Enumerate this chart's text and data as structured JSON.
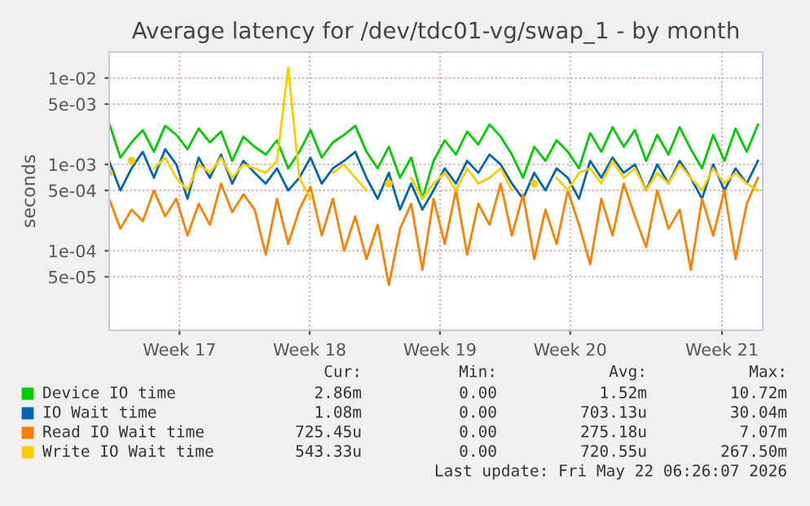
{
  "chart_data": {
    "type": "line",
    "title": "Average latency for /dev/tdc01-vg/swap_1 - by month",
    "ylabel": "seconds",
    "x": [
      "2026-04-19T18:00",
      "2026-04-20T08:00",
      "2026-04-20T22:00",
      "2026-04-21T12:00",
      "2026-04-22T02:00",
      "2026-04-22T16:00",
      "2026-04-23T06:00",
      "2026-04-23T20:00",
      "2026-04-24T10:00",
      "2026-04-25T00:00",
      "2026-04-25T14:00",
      "2026-04-26T04:00",
      "2026-04-26T18:00",
      "2026-04-27T08:00",
      "2026-04-27T22:00",
      "2026-04-28T12:00",
      "2026-04-29T02:00",
      "2026-04-29T16:00",
      "2026-04-30T06:00",
      "2026-04-30T20:00",
      "2026-05-01T10:00",
      "2026-05-02T00:00",
      "2026-05-02T14:00",
      "2026-05-03T04:00",
      "2026-05-03T18:00",
      "2026-05-04T08:00",
      "2026-05-04T22:00",
      "2026-05-05T12:00",
      "2026-05-06T02:00",
      "2026-05-06T16:00",
      "2026-05-07T06:00",
      "2026-05-07T20:00",
      "2026-05-08T10:00",
      "2026-05-09T00:00",
      "2026-05-09T14:00",
      "2026-05-10T04:00",
      "2026-05-10T18:00",
      "2026-05-11T08:00",
      "2026-05-11T22:00",
      "2026-05-12T12:00",
      "2026-05-13T02:00",
      "2026-05-13T16:00",
      "2026-05-14T06:00",
      "2026-05-14T20:00",
      "2026-05-15T10:00",
      "2026-05-16T00:00",
      "2026-05-16T14:00",
      "2026-05-17T04:00",
      "2026-05-17T18:00",
      "2026-05-18T08:00",
      "2026-05-18T22:00",
      "2026-05-19T12:00",
      "2026-05-20T02:00",
      "2026-05-20T16:00",
      "2026-05-21T06:00",
      "2026-05-21T20:00",
      "2026-05-22T10:00",
      "2026-05-23T00:00",
      "2026-05-23T14:00"
    ],
    "series": [
      {
        "name": "Device IO time",
        "color": "#00cc00",
        "values": [
          0.003,
          0.0012,
          0.0018,
          0.0025,
          0.0014,
          0.0028,
          0.0022,
          0.0015,
          0.0026,
          0.0018,
          0.0024,
          0.0011,
          0.0021,
          0.0016,
          0.0013,
          0.0019,
          0.0009,
          0.0014,
          0.0025,
          0.0012,
          0.0018,
          0.0022,
          0.0028,
          0.0014,
          0.0009,
          0.0016,
          0.0007,
          0.0012,
          0.0004,
          0.0011,
          0.0019,
          0.0013,
          0.0024,
          0.0017,
          0.0029,
          0.0021,
          0.0013,
          0.0007,
          0.0016,
          0.0011,
          0.0019,
          0.0014,
          0.0009,
          0.0023,
          0.0014,
          0.0027,
          0.0016,
          0.0025,
          0.0011,
          0.0022,
          0.0013,
          0.0027,
          0.0015,
          0.0009,
          0.0022,
          0.0011,
          0.0026,
          0.0014,
          0.0029
        ]
      },
      {
        "name": "IO Wait time",
        "color": "#0066b3",
        "values": [
          0.0011,
          0.0005,
          0.0009,
          0.0014,
          0.0007,
          0.0015,
          0.001,
          0.0004,
          0.0012,
          0.0007,
          0.0013,
          0.0006,
          0.0011,
          0.0008,
          0.0006,
          0.0009,
          0.0005,
          0.0007,
          0.0012,
          0.0006,
          0.0009,
          0.0011,
          0.0014,
          0.0007,
          0.0004,
          0.0008,
          0.0003,
          0.0006,
          0.0003,
          0.0005,
          0.0009,
          0.0006,
          0.0011,
          0.0008,
          0.0013,
          0.001,
          0.0006,
          0.0004,
          0.0008,
          0.0005,
          0.0009,
          0.0007,
          0.0004,
          0.0011,
          0.0007,
          0.0012,
          0.0008,
          0.001,
          0.0005,
          0.001,
          0.0006,
          0.0011,
          0.0007,
          0.0004,
          0.001,
          0.0005,
          0.0009,
          0.0006,
          0.0011
        ]
      },
      {
        "name": "Read IO Wait time",
        "color": "#ff8000",
        "values": [
          0.0004,
          0.00018,
          0.0003,
          0.00022,
          0.0005,
          0.00025,
          0.0004,
          0.00015,
          0.00035,
          0.0002,
          0.0006,
          0.00028,
          0.00045,
          0.0003,
          9e-05,
          0.0004,
          0.00012,
          0.0003,
          0.00055,
          0.00015,
          0.0004,
          0.0001,
          0.00025,
          8e-05,
          0.0002,
          4e-05,
          0.00018,
          0.00035,
          6e-05,
          0.0004,
          0.00012,
          0.0005,
          9e-05,
          0.00035,
          0.0002,
          0.0006,
          0.00015,
          0.00045,
          8e-05,
          0.0003,
          0.00012,
          0.0005,
          0.0002,
          7e-05,
          0.0004,
          0.00015,
          0.0006,
          0.00025,
          0.00011,
          0.0005,
          0.00018,
          0.0003,
          6e-05,
          0.0004,
          0.00015,
          0.0005,
          8e-05,
          0.00035,
          0.0007
        ]
      },
      {
        "name": "Write IO Wait time",
        "color": "#ffcc00",
        "values": [
          0.0008,
          null,
          0.0011,
          null,
          0.0009,
          0.0012,
          0.0007,
          0.0005,
          0.001,
          0.0008,
          0.0012,
          0.0007,
          0.001,
          0.0009,
          0.0008,
          0.0011,
          0.0132,
          0.0007,
          0.0004,
          null,
          0.0008,
          0.001,
          0.0007,
          0.0005,
          null,
          0.0006,
          null,
          0.0007,
          0.0004,
          0.0006,
          0.0008,
          0.0005,
          0.0009,
          0.0006,
          0.0007,
          0.0009,
          0.0005,
          null,
          0.0006,
          null,
          0.0007,
          0.0005,
          0.0008,
          0.0009,
          0.0006,
          0.0011,
          0.0007,
          0.0009,
          0.0005,
          0.0008,
          0.0006,
          0.001,
          0.0007,
          0.0005,
          0.0009,
          0.0006,
          0.0008,
          0.0006,
          0.0005
        ]
      }
    ],
    "log": "y",
    "ylim": [
      1.2e-05,
      0.02
    ],
    "yticks": [
      {
        "value": 5e-05,
        "label": "5e-05"
      },
      {
        "value": 0.0001,
        "label": "1e-04"
      },
      {
        "value": 0.0005,
        "label": "5e-04"
      },
      {
        "value": 0.001,
        "label": "1e-03"
      },
      {
        "value": 0.005,
        "label": "5e-03"
      },
      {
        "value": 0.01,
        "label": "1e-02"
      }
    ],
    "xlim": [
      "2026-04-19T18:00",
      "2026-05-23T20:00"
    ],
    "xticks": [
      {
        "value": "2026-04-23T10:00",
        "label": "Week 17"
      },
      {
        "value": "2026-04-30T05:00",
        "label": "Week 18"
      },
      {
        "value": "2026-05-07T00:00",
        "label": "Week 19"
      },
      {
        "value": "2026-05-13T19:00",
        "label": "Week 20"
      },
      {
        "value": "2026-05-21T17:00",
        "label": "Week 21"
      }
    ],
    "grid": true,
    "legend": "bottom",
    "annotations": [
      "Cur:",
      "Min:",
      "Avg:",
      "Max:",
      "2.86m",
      "0.00",
      "1.52m",
      "10.72m",
      "1.08m",
      "0.00",
      "703.13u",
      "30.04m",
      "725.45u",
      "0.00",
      "275.18u",
      "7.07m",
      "543.33u",
      "0.00",
      "720.55u",
      "267.50m",
      "Last update: Fri May 22 06:26:07 2026"
    ]
  }
}
